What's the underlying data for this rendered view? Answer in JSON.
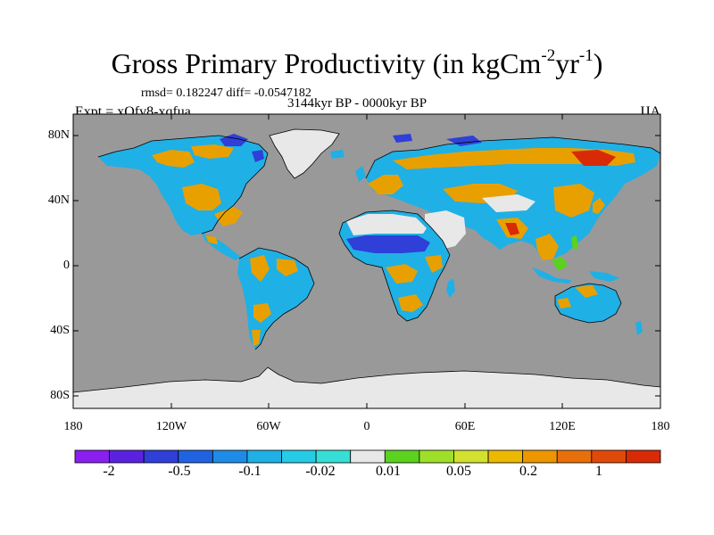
{
  "figure": {
    "title_main": "Gross Primary Productivity (in kgCm",
    "title_exp1": "-2",
    "title_mid": "yr",
    "title_exp2": "-1",
    "title_end": ")",
    "stats": "rmsd= 0.182247 diff= -0.0547182",
    "period": "3144kyr BP - 0000kyr BP",
    "experiment": "Expt = xQfv8-xqfua",
    "season": "JJA"
  },
  "axes": {
    "lat_labels": [
      "80N",
      "40N",
      "0",
      "40S",
      "80S"
    ],
    "lon_labels": [
      "180",
      "120W",
      "60W",
      "0",
      "60E",
      "120E",
      "180"
    ]
  },
  "colorbar": {
    "colors": [
      "#8a1ff0",
      "#5a22e0",
      "#2f3fd8",
      "#1f63e0",
      "#1e8ce6",
      "#1fb0e6",
      "#26cbe6",
      "#36dfd6",
      "#e8e8e8",
      "#5ad21e",
      "#9ee028",
      "#d2e02e",
      "#ecb800",
      "#ec9600",
      "#e8700a",
      "#e04a08",
      "#d82a06"
    ],
    "labels": [
      "-2",
      "-0.5",
      "-0.1",
      "-0.02",
      "0.01",
      "0.05",
      "0.2",
      "1"
    ]
  },
  "map_colors": {
    "ocean": "#999999",
    "ice": "#e8e8e8",
    "veg_positive": "#e8a000",
    "veg_negative": "#1fb0e6",
    "strong_negative": "#2f3fd8",
    "strong_positive": "#d82a06",
    "mild_positive": "#5ad21e"
  }
}
